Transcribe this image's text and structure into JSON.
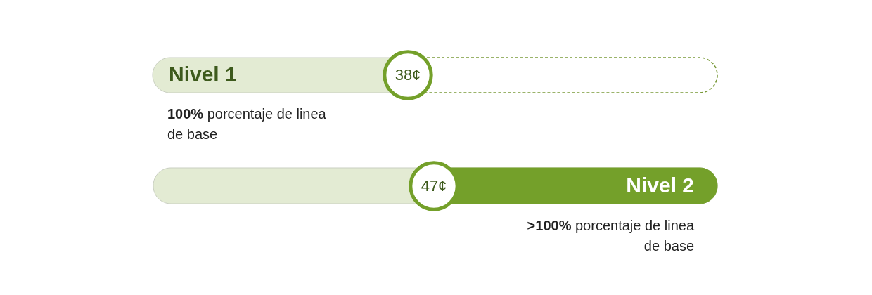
{
  "chart_data": {
    "type": "other",
    "categories": [
      "Nivel 1",
      "Nivel 2"
    ],
    "values": [
      38,
      47
    ],
    "value_labels": [
      "38¢",
      "47¢"
    ],
    "annotations": [
      "100% porcentaje de linea de base",
      ">100% porcentaje de linea de base"
    ]
  }
}
